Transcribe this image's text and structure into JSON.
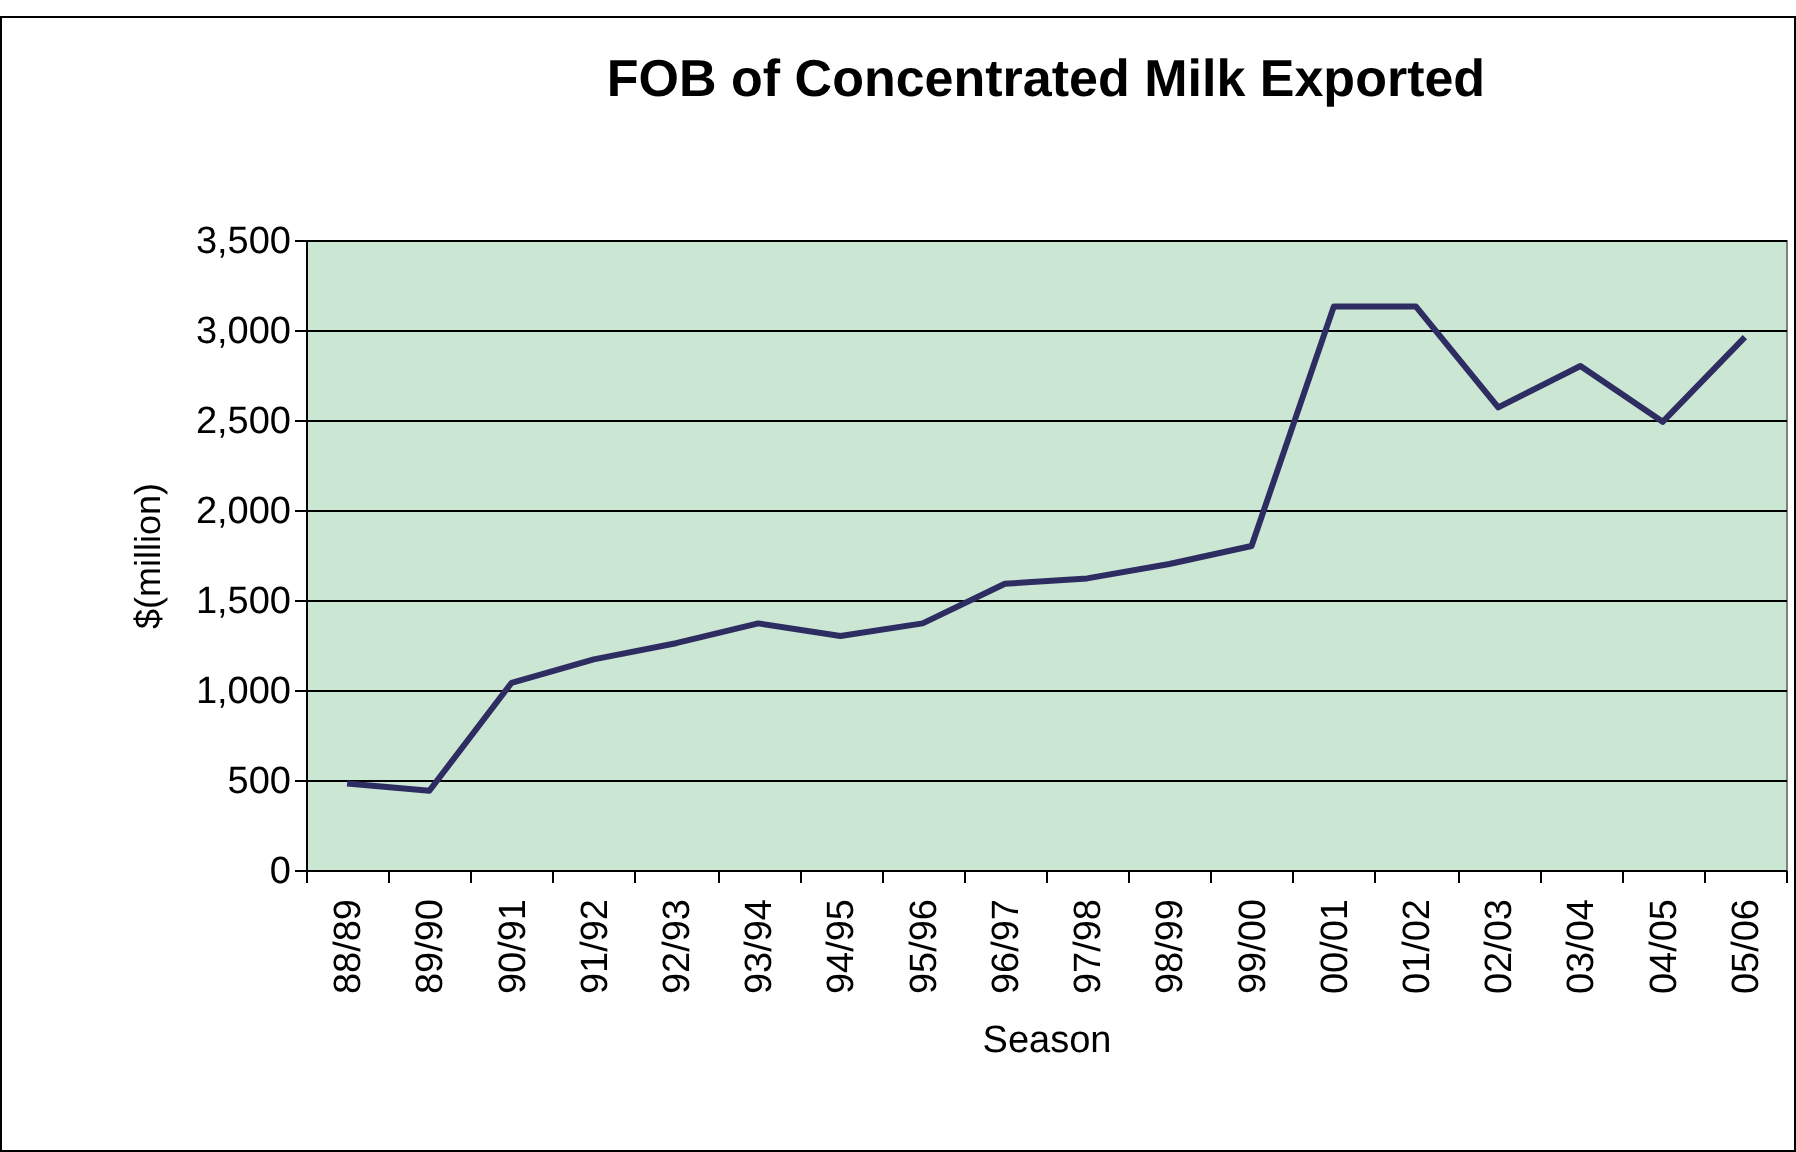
{
  "chart_data": {
    "type": "line",
    "title": "FOB of Concentrated Milk Exported",
    "xlabel": "Season",
    "ylabel": "$(million)",
    "categories": [
      "88/89",
      "89/90",
      "90/91",
      "91/92",
      "92/93",
      "93/94",
      "94/95",
      "95/96",
      "96/97",
      "97/98",
      "98/99",
      "99/00",
      "00/01",
      "01/02",
      "02/03",
      "03/04",
      "04/05",
      "05/06"
    ],
    "series": [
      {
        "color": "#2e2d62",
        "values": [
          480,
          440,
          1040,
          1170,
          1260,
          1370,
          1300,
          1370,
          1590,
          1620,
          1700,
          1800,
          3130,
          3130,
          2570,
          2800,
          2490,
          2960
        ]
      }
    ],
    "ylim": [
      0,
      3500
    ],
    "yticks": [
      0,
      {
        "value": 500,
        "label": "500"
      },
      {
        "value": 1000,
        "label": "1,000"
      },
      {
        "value": 1500,
        "label": "1,500"
      },
      {
        "value": 2000,
        "label": "2,000"
      },
      {
        "value": 2500,
        "label": "2,500"
      },
      {
        "value": 3000,
        "label": "3,000"
      },
      {
        "value": 3500,
        "label": "3,500"
      }
    ],
    "grid": "y",
    "line_style": "solid"
  }
}
